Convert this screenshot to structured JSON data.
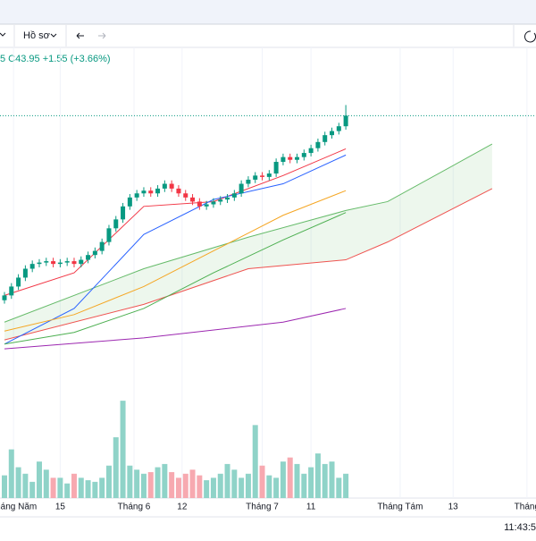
{
  "header": {
    "profile": "Hồ sơ",
    "quote": "5 C43.95 +1.55 (+3.66%)"
  },
  "time": "11:43:5",
  "chart_data": {
    "type": "candlestick",
    "x": [
      0,
      1,
      2,
      3,
      4,
      5,
      6,
      7,
      8,
      9,
      10,
      11,
      12,
      13,
      14,
      15,
      16,
      17,
      18,
      19,
      20,
      21,
      22,
      23,
      24,
      25,
      26,
      27,
      28,
      29,
      30,
      31,
      32,
      33,
      34,
      35,
      36,
      37,
      38,
      39,
      40,
      41,
      42,
      43,
      44,
      45,
      46,
      47,
      48,
      49
    ],
    "open": [
      17.0,
      17.7,
      19.0,
      20.3,
      21.6,
      22.3,
      22.5,
      22.7,
      22.3,
      22.5,
      22.7,
      22.3,
      22.9,
      23.6,
      24.2,
      25.5,
      27.5,
      28.8,
      30.7,
      32.0,
      32.6,
      33.0,
      32.6,
      33.3,
      34.0,
      33.3,
      32.6,
      32.0,
      31.4,
      30.7,
      31.0,
      31.4,
      31.7,
      32.0,
      32.6,
      34.0,
      34.6,
      35.2,
      35.0,
      35.5,
      37.2,
      37.9,
      37.5,
      37.9,
      38.5,
      39.2,
      40.1,
      41.1,
      41.7,
      42.4
    ],
    "high": [
      18.2,
      19.5,
      20.8,
      22.1,
      22.8,
      23.0,
      23.2,
      23.2,
      23.0,
      23.2,
      23.2,
      23.4,
      24.1,
      24.7,
      26.0,
      28.0,
      29.3,
      31.2,
      32.5,
      33.1,
      33.5,
      33.5,
      33.8,
      34.5,
      34.5,
      33.8,
      33.1,
      32.5,
      31.9,
      31.5,
      31.9,
      32.2,
      32.5,
      33.1,
      34.5,
      35.1,
      35.7,
      35.7,
      36.0,
      37.7,
      38.4,
      38.4,
      38.4,
      39.0,
      39.7,
      40.6,
      41.6,
      42.2,
      42.9,
      45.5
    ],
    "low": [
      16.5,
      17.2,
      18.5,
      19.8,
      21.1,
      21.8,
      22.0,
      21.8,
      21.8,
      22.0,
      21.8,
      21.8,
      22.4,
      23.1,
      23.7,
      25.0,
      27.0,
      28.3,
      30.2,
      31.5,
      32.1,
      32.1,
      32.1,
      32.8,
      32.8,
      32.1,
      31.5,
      30.9,
      30.2,
      30.2,
      30.5,
      30.9,
      31.2,
      31.5,
      32.1,
      33.5,
      34.1,
      34.5,
      34.5,
      35.0,
      36.7,
      37.0,
      37.0,
      37.4,
      38.0,
      38.7,
      39.6,
      40.6,
      41.2,
      41.9
    ],
    "close": [
      17.7,
      19.0,
      20.3,
      21.6,
      22.3,
      22.5,
      22.7,
      22.3,
      22.5,
      22.7,
      22.3,
      22.9,
      23.6,
      24.2,
      25.5,
      27.5,
      28.8,
      30.7,
      32.0,
      32.6,
      33.0,
      32.6,
      33.3,
      34.0,
      33.3,
      32.6,
      32.0,
      31.4,
      30.7,
      31.0,
      31.4,
      31.7,
      32.0,
      32.6,
      34.0,
      34.6,
      35.2,
      35.0,
      35.5,
      37.2,
      37.9,
      37.5,
      37.9,
      38.5,
      39.2,
      40.1,
      41.1,
      41.7,
      42.4,
      43.95
    ],
    "volume": [
      28,
      60,
      38,
      30,
      20,
      45,
      35,
      25,
      25,
      18,
      30,
      25,
      22,
      20,
      25,
      40,
      75,
      120,
      40,
      35,
      30,
      32,
      38,
      42,
      32,
      25,
      30,
      35,
      28,
      22,
      25,
      30,
      42,
      35,
      25,
      30,
      90,
      40,
      28,
      25,
      45,
      50,
      42,
      30,
      38,
      55,
      42,
      45,
      25,
      30
    ],
    "up_color": "#089981",
    "down_color": "#f23645",
    "volume_up_color": "#8fd3c8",
    "volume_down_color": "#f7a9b0",
    "overlays": [
      {
        "color": "#f23645",
        "x": [
          0,
          10,
          20,
          30,
          40,
          49
        ],
        "values": [
          17.7,
          21.0,
          30.7,
          31.4,
          35.2,
          39.1
        ]
      },
      {
        "color": "#2962ff",
        "x": [
          0,
          10,
          20,
          30,
          40,
          49
        ],
        "values": [
          10.6,
          15.8,
          26.6,
          31.7,
          34.0,
          38.2
        ]
      },
      {
        "color": "#f5a623",
        "x": [
          0,
          10,
          20,
          30,
          40,
          49
        ],
        "values": [
          12.5,
          14.9,
          19.0,
          24.2,
          29.4,
          33.0
        ]
      },
      {
        "color": "#4caf50",
        "x": [
          0,
          10,
          20,
          30,
          40,
          49
        ],
        "values": [
          10.6,
          12.3,
          15.8,
          21.0,
          25.8,
          29.8
        ]
      },
      {
        "color": "#9c27b0",
        "x": [
          0,
          20,
          40,
          49
        ],
        "values": [
          9.9,
          11.5,
          13.8,
          15.8
        ]
      }
    ],
    "cloud": {
      "x": [
        0,
        20,
        35,
        49,
        55,
        70
      ],
      "upper": [
        13.8,
        21.6,
        26.2,
        30.1,
        31.4,
        39.8
      ],
      "lower": [
        11.2,
        16.4,
        21.6,
        22.9,
        25.5,
        33.3
      ],
      "upper_color": "#66bb6a",
      "lower_color": "#ef5350"
    },
    "ylim": [
      6,
      53
    ],
    "vlim": [
      0,
      140
    ],
    "xlim": [
      -0.64,
      76.3
    ],
    "x_labels": {
      "x": [
        1.3,
        8,
        18.6,
        25.5,
        37,
        44,
        56.8,
        64.4,
        75
      ],
      "labels": [
        "Tháng Năm",
        "15",
        "Tháng 6",
        "12",
        "Tháng 7",
        "11",
        "Tháng Tám",
        "13",
        "Tháng"
      ]
    }
  }
}
